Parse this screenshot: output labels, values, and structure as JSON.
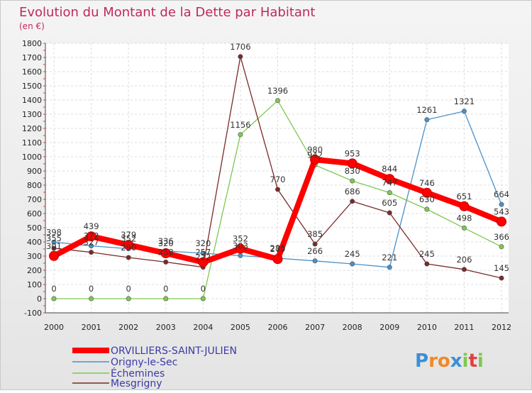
{
  "chart_data": {
    "type": "line",
    "title": "Evolution du Montant de la Dette par Habitant",
    "unit_label": "(en €)",
    "xlabel": "",
    "ylabel": "",
    "categories": [
      "2000",
      "2001",
      "2002",
      "2003",
      "2004",
      "2005",
      "2006",
      "2007",
      "2008",
      "2009",
      "2010",
      "2011",
      "2012"
    ],
    "y_ticks": [
      "-100",
      "0",
      "100",
      "200",
      "300",
      "400",
      "500",
      "600",
      "700",
      "800",
      "900",
      "1000",
      "1100",
      "1200",
      "1300",
      "1400",
      "1500",
      "1600",
      "1700",
      "1800"
    ],
    "ylim": [
      -100,
      1800
    ],
    "grid": true,
    "legend_position": "bottom-left",
    "series": [
      {
        "name": "ORVILLIERS-SAINT-JULIEN",
        "color": "#ff0000",
        "values": [
          301,
          439,
          379,
          320,
          257,
          352,
          279,
          980,
          953,
          844,
          746,
          651,
          543
        ],
        "labels": [
          "301",
          "439",
          "379",
          "320",
          "257",
          "352",
          "279",
          "980",
          "953",
          "844",
          "746",
          "651",
          "543"
        ]
      },
      {
        "name": "Origny-le-Sec",
        "color": "#4a90c8",
        "values": [
          398,
          372,
          352,
          336,
          320,
          303,
          285,
          266,
          245,
          221,
          1261,
          1321,
          664
        ],
        "labels": [
          "398",
          "372",
          "352",
          "336",
          "320",
          "303",
          "285",
          "266",
          "245",
          "221",
          "1261",
          "1321",
          "664"
        ]
      },
      {
        "name": "Échemines",
        "color": "#7ec850",
        "values": [
          0,
          0,
          0,
          0,
          0,
          1156,
          1396,
          942,
          830,
          747,
          630,
          498,
          366
        ],
        "labels": [
          "0",
          "0",
          "0",
          "0",
          "0",
          "1156",
          "1396",
          "942",
          "830",
          "747",
          "630",
          "498",
          "366"
        ]
      },
      {
        "name": "Mesgrigny",
        "color": "#7a2a2a",
        "values": [
          355,
          327,
          290,
          258,
          222,
          1706,
          770,
          385,
          686,
          605,
          245,
          206,
          145
        ],
        "labels": [
          "355",
          "327",
          "290",
          "258",
          "222",
          "1706",
          "770",
          "385",
          "686",
          "605",
          "245",
          "206",
          "145"
        ]
      }
    ]
  },
  "logo": {
    "text": "Proxiti"
  }
}
